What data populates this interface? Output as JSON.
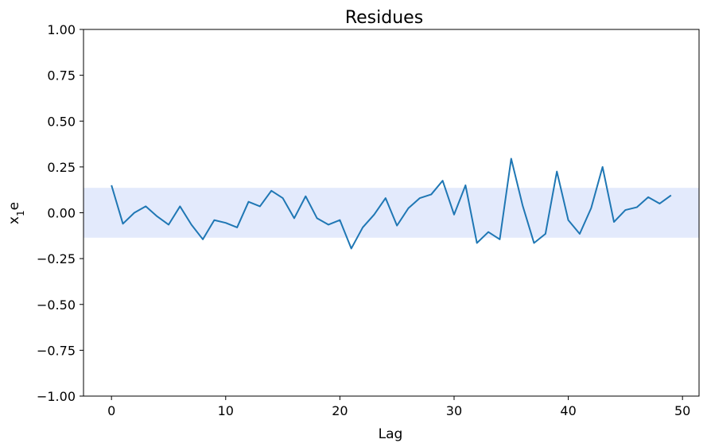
{
  "chart_data": {
    "type": "line",
    "title": "Residues",
    "xlabel": "Lag",
    "ylabel": "x",
    "ylabel_subscript": "1",
    "ylabel_suffix": "e",
    "xlim": [
      -2.45,
      51.45
    ],
    "ylim": [
      -1.0,
      1.0
    ],
    "xticks": [
      0,
      10,
      20,
      30,
      40,
      50
    ],
    "yticks": [
      -1.0,
      -0.75,
      -0.5,
      -0.25,
      0.0,
      0.25,
      0.5,
      0.75,
      1.0
    ],
    "xtick_labels": [
      "0",
      "10",
      "20",
      "30",
      "40",
      "50"
    ],
    "ytick_labels": [
      "−1.00",
      "−0.75",
      "−0.50",
      "−0.25",
      "0.00",
      "0.25",
      "0.50",
      "0.75",
      "1.00"
    ],
    "confidence_band": [
      -0.136,
      0.136
    ],
    "colors": {
      "line": "#1f77b4",
      "band": "#e3eafc"
    },
    "series": [
      {
        "x": [
          0,
          1,
          2,
          3,
          4,
          5,
          6,
          7,
          8,
          9,
          10,
          11,
          12,
          13,
          14,
          15,
          16,
          17,
          18,
          19,
          20,
          21,
          22,
          23,
          24,
          25,
          26,
          27,
          28,
          29,
          30,
          31,
          32,
          33,
          34,
          35,
          36,
          37,
          38,
          39,
          40,
          41,
          42,
          43,
          44,
          45,
          46,
          47,
          48,
          49
        ],
        "values": [
          0.15,
          -0.06,
          0.0,
          0.035,
          -0.02,
          -0.065,
          0.035,
          -0.065,
          -0.145,
          -0.04,
          -0.055,
          -0.08,
          0.06,
          0.035,
          0.12,
          0.08,
          -0.03,
          0.09,
          -0.03,
          -0.065,
          -0.04,
          -0.195,
          -0.08,
          -0.01,
          0.08,
          -0.07,
          0.025,
          0.08,
          0.1,
          0.175,
          -0.01,
          0.15,
          -0.165,
          -0.105,
          -0.145,
          0.295,
          0.04,
          -0.165,
          -0.115,
          0.225,
          -0.04,
          -0.115,
          0.025,
          0.25,
          -0.05,
          0.015,
          0.03,
          0.085,
          0.05,
          0.095
        ]
      }
    ]
  }
}
